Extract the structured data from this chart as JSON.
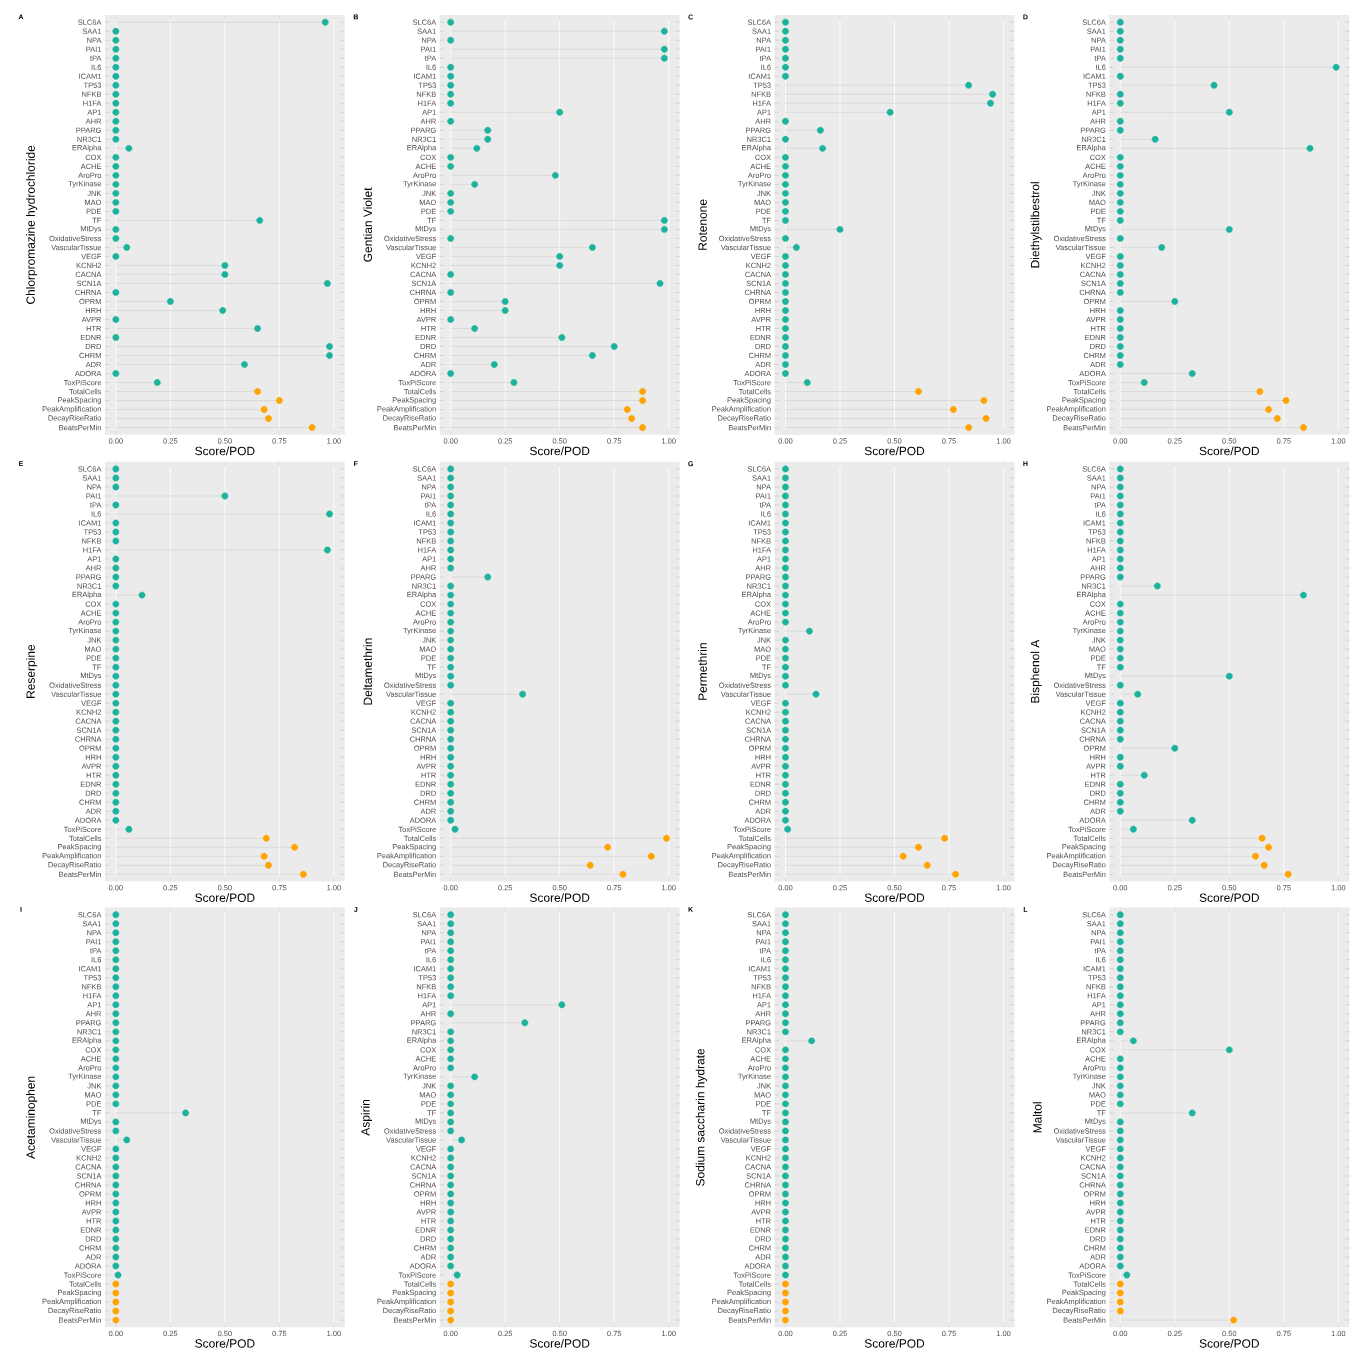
{
  "chart_data": [
    {
      "type": "lollipop",
      "orientation": "horizontal",
      "title": "A",
      "ylabel": "Chlorpromazine hydrochloride",
      "xlabel": "Score/POD",
      "grid": "x",
      "marker": "circle",
      "categories": [
        "SLC6A",
        "SAA1",
        "NPA",
        "PAI1",
        "tPA",
        "IL6",
        "ICAM1",
        "TP53",
        "NFKB",
        "H1FA",
        "AP1",
        "AHR",
        "PPARG",
        "NR3C1",
        "ERAlpha",
        "COX",
        "ACHE",
        "AroPro",
        "TyrKinase",
        "JNK",
        "MAO",
        "PDE",
        "TF",
        "MtDys",
        "OxidativeStress",
        "VascularTissue",
        "VEGF",
        "KCNH2",
        "CACNA",
        "SCN1A",
        "CHRNA",
        "OPRM",
        "HRH",
        "AVPR",
        "HTR",
        "EDNR",
        "DRD",
        "CHRM",
        "ADR",
        "ADORA",
        "ToxPiScore",
        "TotalCells",
        "PeakSpacing",
        "PeakAmplification",
        "DecayRiseRatio",
        "BeatsPerMin"
      ],
      "xlim": [
        -0.05,
        1.05
      ],
      "xticks": [
        {
          "value": 0,
          "label": "0.00"
        },
        {
          "value": 0.25,
          "label": "0.25"
        },
        {
          "value": 0.5,
          "label": "0.50"
        },
        {
          "value": 0.75,
          "label": "0.75"
        },
        {
          "value": 1,
          "label": "1.00"
        }
      ],
      "series": [
        {
          "color": "#1cb39d",
          "values": [
            0.96,
            0,
            0,
            0,
            0,
            0,
            0,
            0,
            0,
            0,
            0,
            0,
            0,
            0,
            0.06,
            0,
            0,
            0,
            0,
            0,
            0,
            0,
            0.66,
            0,
            0,
            0.05,
            0,
            0.5,
            0.5,
            0.97,
            0,
            0.25,
            0.49,
            0,
            0.65,
            0,
            0.98,
            0.98,
            0.59,
            0,
            0.19,
            null,
            null,
            null,
            null,
            null
          ]
        },
        {
          "color": "#ffa300",
          "values": [
            null,
            null,
            null,
            null,
            null,
            null,
            null,
            null,
            null,
            null,
            null,
            null,
            null,
            null,
            null,
            null,
            null,
            null,
            null,
            null,
            null,
            null,
            null,
            null,
            null,
            null,
            null,
            null,
            null,
            null,
            null,
            null,
            null,
            null,
            null,
            null,
            null,
            null,
            null,
            null,
            null,
            0.65,
            0.75,
            0.68,
            0.7,
            0.9
          ]
        }
      ]
    },
    {
      "type": "lollipop",
      "orientation": "horizontal",
      "title": "B",
      "ylabel": "Gentian Violet",
      "xlabel": "Score/POD",
      "grid": "x",
      "marker": "circle",
      "categories": [
        "SLC6A",
        "SAA1",
        "NPA",
        "PAI1",
        "tPA",
        "IL6",
        "ICAM1",
        "TP53",
        "NFKB",
        "H1FA",
        "AP1",
        "AHR",
        "PPARG",
        "NR3C1",
        "ERAlpha",
        "COX",
        "ACHE",
        "AroPro",
        "TyrKinase",
        "JNK",
        "MAO",
        "PDE",
        "TF",
        "MtDys",
        "OxidativeStress",
        "VascularTissue",
        "VEGF",
        "KCNH2",
        "CACNA",
        "SCN1A",
        "CHRNA",
        "OPRM",
        "HRH",
        "AVPR",
        "HTR",
        "EDNR",
        "DRD",
        "CHRM",
        "ADR",
        "ADORA",
        "ToxPiScore",
        "TotalCells",
        "PeakSpacing",
        "PeakAmplification",
        "DecayRiseRatio",
        "BeatsPerMin"
      ],
      "xlim": [
        -0.05,
        1.05
      ],
      "xticks": [
        {
          "value": 0,
          "label": "0.00"
        },
        {
          "value": 0.25,
          "label": "0.25"
        },
        {
          "value": 0.5,
          "label": "0.50"
        },
        {
          "value": 0.75,
          "label": "0.75"
        },
        {
          "value": 1,
          "label": "1.00"
        }
      ],
      "series": [
        {
          "color": "#1cb39d",
          "values": [
            0,
            0.98,
            0,
            0.98,
            0.98,
            0,
            0,
            0,
            0,
            0,
            0.5,
            0,
            0.17,
            0.17,
            0.12,
            0,
            0,
            0.48,
            0.11,
            0,
            0,
            0,
            0.98,
            0.98,
            0,
            0.65,
            0.5,
            0.5,
            0,
            0.96,
            0,
            0.25,
            0.25,
            0,
            0.11,
            0.51,
            0.75,
            0.65,
            0.2,
            0,
            0.29,
            null,
            null,
            null,
            null,
            null
          ]
        },
        {
          "color": "#ffa300",
          "values": [
            null,
            null,
            null,
            null,
            null,
            null,
            null,
            null,
            null,
            null,
            null,
            null,
            null,
            null,
            null,
            null,
            null,
            null,
            null,
            null,
            null,
            null,
            null,
            null,
            null,
            null,
            null,
            null,
            null,
            null,
            null,
            null,
            null,
            null,
            null,
            null,
            null,
            null,
            null,
            null,
            null,
            0.88,
            0.88,
            0.81,
            0.83,
            0.88
          ]
        }
      ]
    },
    {
      "type": "lollipop",
      "orientation": "horizontal",
      "title": "C",
      "ylabel": "Rotenone",
      "xlabel": "Score/POD",
      "grid": "x",
      "marker": "circle",
      "categories": [
        "SLC6A",
        "SAA1",
        "NPA",
        "PAI1",
        "tPA",
        "IL6",
        "ICAM1",
        "TP53",
        "NFKB",
        "H1FA",
        "AP1",
        "AHR",
        "PPARG",
        "NR3C1",
        "ERAlpha",
        "COX",
        "ACHE",
        "AroPro",
        "TyrKinase",
        "JNK",
        "MAO",
        "PDE",
        "TF",
        "MtDys",
        "OxidativeStress",
        "VascularTissue",
        "VEGF",
        "KCNH2",
        "CACNA",
        "SCN1A",
        "CHRNA",
        "OPRM",
        "HRH",
        "AVPR",
        "HTR",
        "EDNR",
        "DRD",
        "CHRM",
        "ADR",
        "ADORA",
        "ToxPiScore",
        "TotalCells",
        "PeakSpacing",
        "PeakAmplification",
        "DecayRiseRatio",
        "BeatsPerMin"
      ],
      "xlim": [
        -0.05,
        1.05
      ],
      "xticks": [
        {
          "value": 0,
          "label": "0.00"
        },
        {
          "value": 0.25,
          "label": "0.25"
        },
        {
          "value": 0.5,
          "label": "0.50"
        },
        {
          "value": 0.75,
          "label": "0.75"
        },
        {
          "value": 1,
          "label": "1.00"
        }
      ],
      "series": [
        {
          "color": "#1cb39d",
          "values": [
            0,
            0,
            0,
            0,
            0,
            0,
            0,
            0.84,
            0.95,
            0.94,
            0.48,
            0,
            0.16,
            0,
            0.17,
            0,
            0,
            0,
            0,
            0,
            0,
            0,
            0,
            0.25,
            0,
            0.05,
            0,
            0,
            0,
            0,
            0,
            0,
            0,
            0,
            0,
            0,
            0,
            0,
            0,
            0,
            0.1,
            null,
            null,
            null,
            null,
            null
          ]
        },
        {
          "color": "#ffa300",
          "values": [
            null,
            null,
            null,
            null,
            null,
            null,
            null,
            null,
            null,
            null,
            null,
            null,
            null,
            null,
            null,
            null,
            null,
            null,
            null,
            null,
            null,
            null,
            null,
            null,
            null,
            null,
            null,
            null,
            null,
            null,
            null,
            null,
            null,
            null,
            null,
            null,
            null,
            null,
            null,
            null,
            null,
            0.61,
            0.91,
            0.77,
            0.92,
            0.84
          ]
        }
      ]
    },
    {
      "type": "lollipop",
      "orientation": "horizontal",
      "title": "D",
      "ylabel": "Diethylstilbestrol",
      "xlabel": "Score/POD",
      "grid": "x",
      "marker": "circle",
      "categories": [
        "SLC6A",
        "SAA1",
        "NPA",
        "PAI1",
        "tPA",
        "IL6",
        "ICAM1",
        "TP53",
        "NFKB",
        "H1FA",
        "AP1",
        "AHR",
        "PPARG",
        "NR3C1",
        "ERAlpha",
        "COX",
        "ACHE",
        "AroPro",
        "TyrKinase",
        "JNK",
        "MAO",
        "PDE",
        "TF",
        "MtDys",
        "OxidativeStress",
        "VascularTissue",
        "VEGF",
        "KCNH2",
        "CACNA",
        "SCN1A",
        "CHRNA",
        "OPRM",
        "HRH",
        "AVPR",
        "HTR",
        "EDNR",
        "DRD",
        "CHRM",
        "ADR",
        "ADORA",
        "ToxPiScore",
        "TotalCells",
        "PeakSpacing",
        "PeakAmplification",
        "DecayRiseRatio",
        "BeatsPerMin"
      ],
      "xlim": [
        -0.05,
        1.05
      ],
      "xticks": [
        {
          "value": 0,
          "label": "0.00"
        },
        {
          "value": 0.25,
          "label": "0.25"
        },
        {
          "value": 0.5,
          "label": "0.50"
        },
        {
          "value": 0.75,
          "label": "0.75"
        },
        {
          "value": 1,
          "label": "1.00"
        }
      ],
      "series": [
        {
          "color": "#1cb39d",
          "values": [
            0,
            0,
            0,
            0,
            0,
            0.99,
            0,
            0.43,
            0,
            0,
            0.5,
            0,
            0,
            0.16,
            0.87,
            0,
            0,
            0,
            0,
            0,
            0,
            0,
            0,
            0.5,
            0,
            0.19,
            0,
            0,
            0,
            0,
            0,
            0.25,
            0,
            0,
            0,
            0,
            0,
            0,
            0,
            0.33,
            0.11,
            null,
            null,
            null,
            null,
            null
          ]
        },
        {
          "color": "#ffa300",
          "values": [
            null,
            null,
            null,
            null,
            null,
            null,
            null,
            null,
            null,
            null,
            null,
            null,
            null,
            null,
            null,
            null,
            null,
            null,
            null,
            null,
            null,
            null,
            null,
            null,
            null,
            null,
            null,
            null,
            null,
            null,
            null,
            null,
            null,
            null,
            null,
            null,
            null,
            null,
            null,
            null,
            null,
            0.64,
            0.76,
            0.68,
            0.72,
            0.84
          ]
        }
      ]
    },
    {
      "type": "lollipop",
      "orientation": "horizontal",
      "title": "E",
      "ylabel": "Reserpine",
      "xlabel": "Score/POD",
      "grid": "x",
      "marker": "circle",
      "categories": [
        "SLC6A",
        "SAA1",
        "NPA",
        "PAI1",
        "tPA",
        "IL6",
        "ICAM1",
        "TP53",
        "NFKB",
        "H1FA",
        "AP1",
        "AHR",
        "PPARG",
        "NR3C1",
        "ERAlpha",
        "COX",
        "ACHE",
        "AroPro",
        "TyrKinase",
        "JNK",
        "MAO",
        "PDE",
        "TF",
        "MtDys",
        "OxidativeStress",
        "VascularTissue",
        "VEGF",
        "KCNH2",
        "CACNA",
        "SCN1A",
        "CHRNA",
        "OPRM",
        "HRH",
        "AVPR",
        "HTR",
        "EDNR",
        "DRD",
        "CHRM",
        "ADR",
        "ADORA",
        "ToxPiScore",
        "TotalCells",
        "PeakSpacing",
        "PeakAmplification",
        "DecayRiseRatio",
        "BeatsPerMin"
      ],
      "xlim": [
        -0.05,
        1.05
      ],
      "xticks": [
        {
          "value": 0,
          "label": "0.00"
        },
        {
          "value": 0.25,
          "label": "0.25"
        },
        {
          "value": 0.5,
          "label": "0.50"
        },
        {
          "value": 0.75,
          "label": "0.75"
        },
        {
          "value": 1,
          "label": "1.00"
        }
      ],
      "series": [
        {
          "color": "#1cb39d",
          "values": [
            0,
            0,
            0,
            0.5,
            0,
            0.98,
            0,
            0,
            0,
            0.97,
            0,
            0,
            0,
            0,
            0.12,
            0,
            0,
            0,
            0,
            0,
            0,
            0,
            0,
            0,
            0,
            0,
            0,
            0,
            0,
            0,
            0,
            0,
            0,
            0,
            0,
            0,
            0,
            0,
            0,
            0,
            0.06,
            null,
            null,
            null,
            null,
            null
          ]
        },
        {
          "color": "#ffa300",
          "values": [
            null,
            null,
            null,
            null,
            null,
            null,
            null,
            null,
            null,
            null,
            null,
            null,
            null,
            null,
            null,
            null,
            null,
            null,
            null,
            null,
            null,
            null,
            null,
            null,
            null,
            null,
            null,
            null,
            null,
            null,
            null,
            null,
            null,
            null,
            null,
            null,
            null,
            null,
            null,
            null,
            null,
            0.69,
            0.82,
            0.68,
            0.7,
            0.86
          ]
        }
      ]
    },
    {
      "type": "lollipop",
      "orientation": "horizontal",
      "title": "F",
      "ylabel": "Deltamethrin",
      "xlabel": "Score/POD",
      "grid": "x",
      "marker": "circle",
      "categories": [
        "SLC6A",
        "SAA1",
        "NPA",
        "PAI1",
        "tPA",
        "IL6",
        "ICAM1",
        "TP53",
        "NFKB",
        "H1FA",
        "AP1",
        "AHR",
        "PPARG",
        "NR3C1",
        "ERAlpha",
        "COX",
        "ACHE",
        "AroPro",
        "TyrKinase",
        "JNK",
        "MAO",
        "PDE",
        "TF",
        "MtDys",
        "OxidativeStress",
        "VascularTissue",
        "VEGF",
        "KCNH2",
        "CACNA",
        "SCN1A",
        "CHRNA",
        "OPRM",
        "HRH",
        "AVPR",
        "HTR",
        "EDNR",
        "DRD",
        "CHRM",
        "ADR",
        "ADORA",
        "ToxPiScore",
        "TotalCells",
        "PeakSpacing",
        "PeakAmplification",
        "DecayRiseRatio",
        "BeatsPerMin"
      ],
      "xlim": [
        -0.05,
        1.05
      ],
      "xticks": [
        {
          "value": 0,
          "label": "0.00"
        },
        {
          "value": 0.25,
          "label": "0.25"
        },
        {
          "value": 0.5,
          "label": "0.50"
        },
        {
          "value": 0.75,
          "label": "0.75"
        },
        {
          "value": 1,
          "label": "1.00"
        }
      ],
      "series": [
        {
          "color": "#1cb39d",
          "values": [
            0,
            0,
            0,
            0,
            0,
            0,
            0,
            0,
            0,
            0,
            0,
            0,
            0.17,
            0,
            0,
            0,
            0,
            0,
            0,
            0,
            0,
            0,
            0,
            0,
            0,
            0.33,
            0,
            0,
            0,
            0,
            0,
            0,
            0,
            0,
            0,
            0,
            0,
            0,
            0,
            0,
            0.02,
            null,
            null,
            null,
            null,
            null
          ]
        },
        {
          "color": "#ffa300",
          "values": [
            null,
            null,
            null,
            null,
            null,
            null,
            null,
            null,
            null,
            null,
            null,
            null,
            null,
            null,
            null,
            null,
            null,
            null,
            null,
            null,
            null,
            null,
            null,
            null,
            null,
            null,
            null,
            null,
            null,
            null,
            null,
            null,
            null,
            null,
            null,
            null,
            null,
            null,
            null,
            null,
            null,
            0.99,
            0.72,
            0.92,
            0.64,
            0.79
          ]
        }
      ]
    },
    {
      "type": "lollipop",
      "orientation": "horizontal",
      "title": "G",
      "ylabel": "Permethrin",
      "xlabel": "Score/POD",
      "grid": "x",
      "marker": "circle",
      "categories": [
        "SLC6A",
        "SAA1",
        "NPA",
        "PAI1",
        "tPA",
        "IL6",
        "ICAM1",
        "TP53",
        "NFKB",
        "H1FA",
        "AP1",
        "AHR",
        "PPARG",
        "NR3C1",
        "ERAlpha",
        "COX",
        "ACHE",
        "AroPro",
        "TyrKinase",
        "JNK",
        "MAO",
        "PDE",
        "TF",
        "MtDys",
        "OxidativeStress",
        "VascularTissue",
        "VEGF",
        "KCNH2",
        "CACNA",
        "SCN1A",
        "CHRNA",
        "OPRM",
        "HRH",
        "AVPR",
        "HTR",
        "EDNR",
        "DRD",
        "CHRM",
        "ADR",
        "ADORA",
        "ToxPiScore",
        "TotalCells",
        "PeakSpacing",
        "PeakAmplification",
        "DecayRiseRatio",
        "BeatsPerMin"
      ],
      "xlim": [
        -0.05,
        1.05
      ],
      "xticks": [
        {
          "value": 0,
          "label": "0.00"
        },
        {
          "value": 0.25,
          "label": "0.25"
        },
        {
          "value": 0.5,
          "label": "0.50"
        },
        {
          "value": 0.75,
          "label": "0.75"
        },
        {
          "value": 1,
          "label": "1.00"
        }
      ],
      "series": [
        {
          "color": "#1cb39d",
          "values": [
            0,
            0,
            0,
            0,
            0,
            0,
            0,
            0,
            0,
            0,
            0,
            0,
            0,
            0,
            0,
            0,
            0,
            0,
            0.11,
            0,
            0,
            0,
            0,
            0,
            0,
            0.14,
            0,
            0,
            0,
            0,
            0,
            0,
            0,
            0,
            0,
            0,
            0,
            0,
            0,
            0,
            0.01,
            null,
            null,
            null,
            null,
            null
          ]
        },
        {
          "color": "#ffa300",
          "values": [
            null,
            null,
            null,
            null,
            null,
            null,
            null,
            null,
            null,
            null,
            null,
            null,
            null,
            null,
            null,
            null,
            null,
            null,
            null,
            null,
            null,
            null,
            null,
            null,
            null,
            null,
            null,
            null,
            null,
            null,
            null,
            null,
            null,
            null,
            null,
            null,
            null,
            null,
            null,
            null,
            null,
            0.73,
            0.61,
            0.54,
            0.65,
            0.78
          ]
        }
      ]
    },
    {
      "type": "lollipop",
      "orientation": "horizontal",
      "title": "H",
      "ylabel": "Bisphenol A",
      "xlabel": "Score/POD",
      "grid": "x",
      "marker": "circle",
      "categories": [
        "SLC6A",
        "SAA1",
        "NPA",
        "PAI1",
        "tPA",
        "IL6",
        "ICAM1",
        "TP53",
        "NFKB",
        "H1FA",
        "AP1",
        "AHR",
        "PPARG",
        "NR3C1",
        "ERAlpha",
        "COX",
        "ACHE",
        "AroPro",
        "TyrKinase",
        "JNK",
        "MAO",
        "PDE",
        "TF",
        "MtDys",
        "OxidativeStress",
        "VascularTissue",
        "VEGF",
        "KCNH2",
        "CACNA",
        "SCN1A",
        "CHRNA",
        "OPRM",
        "HRH",
        "AVPR",
        "HTR",
        "EDNR",
        "DRD",
        "CHRM",
        "ADR",
        "ADORA",
        "ToxPiScore",
        "TotalCells",
        "PeakSpacing",
        "PeakAmplification",
        "DecayRiseRatio",
        "BeatsPerMin"
      ],
      "xlim": [
        -0.05,
        1.05
      ],
      "xticks": [
        {
          "value": 0,
          "label": "0.00"
        },
        {
          "value": 0.25,
          "label": "0.25"
        },
        {
          "value": 0.5,
          "label": "0.50"
        },
        {
          "value": 0.75,
          "label": "0.75"
        },
        {
          "value": 1,
          "label": "1.00"
        }
      ],
      "series": [
        {
          "color": "#1cb39d",
          "values": [
            0,
            0,
            0,
            0,
            0,
            0,
            0,
            0,
            0,
            0,
            0,
            0,
            0,
            0.17,
            0.84,
            0,
            0,
            0,
            0,
            0,
            0,
            0,
            0,
            0.5,
            0,
            0.08,
            0,
            0,
            0,
            0,
            0,
            0.25,
            0,
            0,
            0.11,
            0,
            0,
            0,
            0,
            0.33,
            0.06,
            null,
            null,
            null,
            null,
            null
          ]
        },
        {
          "color": "#ffa300",
          "values": [
            null,
            null,
            null,
            null,
            null,
            null,
            null,
            null,
            null,
            null,
            null,
            null,
            null,
            null,
            null,
            null,
            null,
            null,
            null,
            null,
            null,
            null,
            null,
            null,
            null,
            null,
            null,
            null,
            null,
            null,
            null,
            null,
            null,
            null,
            null,
            null,
            null,
            null,
            null,
            null,
            null,
            0.65,
            0.68,
            0.62,
            0.66,
            0.77
          ]
        }
      ]
    },
    {
      "type": "lollipop",
      "orientation": "horizontal",
      "title": "I",
      "ylabel": "Acetaminophen",
      "xlabel": "Score/POD",
      "grid": "x",
      "marker": "circle",
      "categories": [
        "SLC6A",
        "SAA1",
        "NPA",
        "PAI1",
        "tPA",
        "IL6",
        "ICAM1",
        "TP53",
        "NFKB",
        "H1FA",
        "AP1",
        "AHR",
        "PPARG",
        "NR3C1",
        "ERAlpha",
        "COX",
        "ACHE",
        "AroPro",
        "TyrKinase",
        "JNK",
        "MAO",
        "PDE",
        "TF",
        "MtDys",
        "OxidativeStress",
        "VascularTissue",
        "VEGF",
        "KCNH2",
        "CACNA",
        "SCN1A",
        "CHRNA",
        "OPRM",
        "HRH",
        "AVPR",
        "HTR",
        "EDNR",
        "DRD",
        "CHRM",
        "ADR",
        "ADORA",
        "ToxPiScore",
        "TotalCells",
        "PeakSpacing",
        "PeakAmplification",
        "DecayRiseRatio",
        "BeatsPerMin"
      ],
      "xlim": [
        -0.05,
        1.05
      ],
      "xticks": [
        {
          "value": 0,
          "label": "0.00"
        },
        {
          "value": 0.25,
          "label": "0.25"
        },
        {
          "value": 0.5,
          "label": "0.50"
        },
        {
          "value": 0.75,
          "label": "0.75"
        },
        {
          "value": 1,
          "label": "1.00"
        }
      ],
      "series": [
        {
          "color": "#1cb39d",
          "values": [
            0,
            0,
            0,
            0,
            0,
            0,
            0,
            0,
            0,
            0,
            0,
            0,
            0,
            0,
            0,
            0,
            0,
            0,
            0,
            0,
            0,
            0,
            0.32,
            0,
            0,
            0.05,
            0,
            0,
            0,
            0,
            0,
            0,
            0,
            0,
            0,
            0,
            0,
            0,
            0,
            0,
            0.01,
            null,
            null,
            null,
            null,
            null
          ]
        },
        {
          "color": "#ffa300",
          "values": [
            null,
            null,
            null,
            null,
            null,
            null,
            null,
            null,
            null,
            null,
            null,
            null,
            null,
            null,
            null,
            null,
            null,
            null,
            null,
            null,
            null,
            null,
            null,
            null,
            null,
            null,
            null,
            null,
            null,
            null,
            null,
            null,
            null,
            null,
            null,
            null,
            null,
            null,
            null,
            null,
            null,
            0,
            0,
            0,
            0,
            0
          ]
        }
      ]
    },
    {
      "type": "lollipop",
      "orientation": "horizontal",
      "title": "J",
      "ylabel": "Aspirin",
      "xlabel": "Score/POD",
      "grid": "x",
      "marker": "circle",
      "categories": [
        "SLC6A",
        "SAA1",
        "NPA",
        "PAI1",
        "tPA",
        "IL6",
        "ICAM1",
        "TP53",
        "NFKB",
        "H1FA",
        "AP1",
        "AHR",
        "PPARG",
        "NR3C1",
        "ERAlpha",
        "COX",
        "ACHE",
        "AroPro",
        "TyrKinase",
        "JNK",
        "MAO",
        "PDE",
        "TF",
        "MtDys",
        "OxidativeStress",
        "VascularTissue",
        "VEGF",
        "KCNH2",
        "CACNA",
        "SCN1A",
        "CHRNA",
        "OPRM",
        "HRH",
        "AVPR",
        "HTR",
        "EDNR",
        "DRD",
        "CHRM",
        "ADR",
        "ADORA",
        "ToxPiScore",
        "TotalCells",
        "PeakSpacing",
        "PeakAmplification",
        "DecayRiseRatio",
        "BeatsPerMin"
      ],
      "xlim": [
        -0.05,
        1.05
      ],
      "xticks": [
        {
          "value": 0,
          "label": "0.00"
        },
        {
          "value": 0.25,
          "label": "0.25"
        },
        {
          "value": 0.5,
          "label": "0.50"
        },
        {
          "value": 0.75,
          "label": "0.75"
        },
        {
          "value": 1,
          "label": "1.00"
        }
      ],
      "series": [
        {
          "color": "#1cb39d",
          "values": [
            0,
            0,
            0,
            0,
            0,
            0,
            0,
            0,
            0,
            0,
            0.51,
            0,
            0.34,
            0,
            0,
            0,
            0,
            0,
            0.11,
            0,
            0,
            0,
            0,
            0,
            0,
            0.05,
            0,
            0,
            0,
            0,
            0,
            0,
            0,
            0,
            0,
            0,
            0,
            0,
            0,
            0,
            0.03,
            null,
            null,
            null,
            null,
            null
          ]
        },
        {
          "color": "#ffa300",
          "values": [
            null,
            null,
            null,
            null,
            null,
            null,
            null,
            null,
            null,
            null,
            null,
            null,
            null,
            null,
            null,
            null,
            null,
            null,
            null,
            null,
            null,
            null,
            null,
            null,
            null,
            null,
            null,
            null,
            null,
            null,
            null,
            null,
            null,
            null,
            null,
            null,
            null,
            null,
            null,
            null,
            null,
            0,
            0,
            0,
            0,
            0
          ]
        }
      ]
    },
    {
      "type": "lollipop",
      "orientation": "horizontal",
      "title": "K",
      "ylabel": "Sodium saccharin hydrate",
      "xlabel": "Score/POD",
      "grid": "x",
      "marker": "circle",
      "categories": [
        "SLC6A",
        "SAA1",
        "NPA",
        "PAI1",
        "tPA",
        "IL6",
        "ICAM1",
        "TP53",
        "NFKB",
        "H1FA",
        "AP1",
        "AHR",
        "PPARG",
        "NR3C1",
        "ERAlpha",
        "COX",
        "ACHE",
        "AroPro",
        "TyrKinase",
        "JNK",
        "MAO",
        "PDE",
        "TF",
        "MtDys",
        "OxidativeStress",
        "VascularTissue",
        "VEGF",
        "KCNH2",
        "CACNA",
        "SCN1A",
        "CHRNA",
        "OPRM",
        "HRH",
        "AVPR",
        "HTR",
        "EDNR",
        "DRD",
        "CHRM",
        "ADR",
        "ADORA",
        "ToxPiScore",
        "TotalCells",
        "PeakSpacing",
        "PeakAmplification",
        "DecayRiseRatio",
        "BeatsPerMin"
      ],
      "xlim": [
        -0.05,
        1.05
      ],
      "xticks": [
        {
          "value": 0,
          "label": "0.00"
        },
        {
          "value": 0.25,
          "label": "0.25"
        },
        {
          "value": 0.5,
          "label": "0.50"
        },
        {
          "value": 0.75,
          "label": "0.75"
        },
        {
          "value": 1,
          "label": "1.00"
        }
      ],
      "series": [
        {
          "color": "#1cb39d",
          "values": [
            0,
            0,
            0,
            0,
            0,
            0,
            0,
            0,
            0,
            0,
            0,
            0,
            0,
            0,
            0.12,
            0,
            0,
            0,
            0,
            0,
            0,
            0,
            0,
            0,
            0,
            0,
            0,
            0,
            0,
            0,
            0,
            0,
            0,
            0,
            0,
            0,
            0,
            0,
            0,
            0,
            0,
            null,
            null,
            null,
            null,
            null
          ]
        },
        {
          "color": "#ffa300",
          "values": [
            null,
            null,
            null,
            null,
            null,
            null,
            null,
            null,
            null,
            null,
            null,
            null,
            null,
            null,
            null,
            null,
            null,
            null,
            null,
            null,
            null,
            null,
            null,
            null,
            null,
            null,
            null,
            null,
            null,
            null,
            null,
            null,
            null,
            null,
            null,
            null,
            null,
            null,
            null,
            null,
            null,
            0,
            0,
            0,
            0,
            0
          ]
        }
      ]
    },
    {
      "type": "lollipop",
      "orientation": "horizontal",
      "title": "L",
      "ylabel": "Maltol",
      "xlabel": "Score/POD",
      "grid": "x",
      "marker": "circle",
      "categories": [
        "SLC6A",
        "SAA1",
        "NPA",
        "PAI1",
        "tPA",
        "IL6",
        "ICAM1",
        "TP53",
        "NFKB",
        "H1FA",
        "AP1",
        "AHR",
        "PPARG",
        "NR3C1",
        "ERAlpha",
        "COX",
        "ACHE",
        "AroPro",
        "TyrKinase",
        "JNK",
        "MAO",
        "PDE",
        "TF",
        "MtDys",
        "OxidativeStress",
        "VascularTissue",
        "VEGF",
        "KCNH2",
        "CACNA",
        "SCN1A",
        "CHRNA",
        "OPRM",
        "HRH",
        "AVPR",
        "HTR",
        "EDNR",
        "DRD",
        "CHRM",
        "ADR",
        "ADORA",
        "ToxPiScore",
        "TotalCells",
        "PeakSpacing",
        "PeakAmplification",
        "DecayRiseRatio",
        "BeatsPerMin"
      ],
      "xlim": [
        -0.05,
        1.05
      ],
      "xticks": [
        {
          "value": 0,
          "label": "0.00"
        },
        {
          "value": 0.25,
          "label": "0.25"
        },
        {
          "value": 0.5,
          "label": "0.50"
        },
        {
          "value": 0.75,
          "label": "0.75"
        },
        {
          "value": 1,
          "label": "1.00"
        }
      ],
      "series": [
        {
          "color": "#1cb39d",
          "values": [
            0,
            0,
            0,
            0,
            0,
            0,
            0,
            0,
            0,
            0,
            0,
            0,
            0,
            0,
            0.06,
            0.5,
            0,
            0,
            0,
            0,
            0,
            0,
            0.33,
            0,
            0,
            0,
            0,
            0,
            0,
            0,
            0,
            0,
            0,
            0,
            0,
            0,
            0,
            0,
            0,
            0,
            0.03,
            null,
            null,
            null,
            null,
            null
          ]
        },
        {
          "color": "#ffa300",
          "values": [
            null,
            null,
            null,
            null,
            null,
            null,
            null,
            null,
            null,
            null,
            null,
            null,
            null,
            null,
            null,
            null,
            null,
            null,
            null,
            null,
            null,
            null,
            null,
            null,
            null,
            null,
            null,
            null,
            null,
            null,
            null,
            null,
            null,
            null,
            null,
            null,
            null,
            null,
            null,
            null,
            null,
            0,
            0,
            0,
            0,
            0.52
          ]
        }
      ]
    }
  ]
}
